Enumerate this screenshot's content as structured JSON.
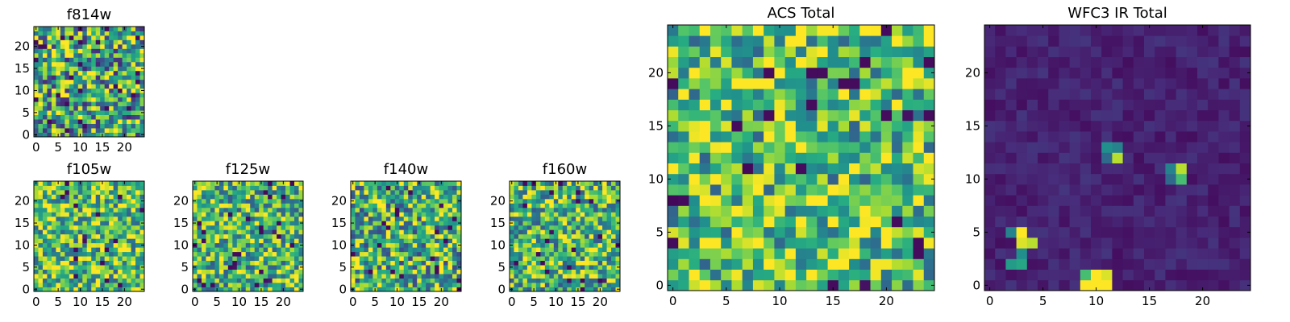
{
  "figure": {
    "description_free": true
  },
  "chart_data": [
    {
      "type": "heatmap",
      "title": "f814w",
      "grid": [
        25,
        25
      ],
      "xlim": [
        -0.5,
        24.5
      ],
      "ylim": [
        -0.5,
        24.5
      ],
      "xticks": [
        0,
        5,
        10,
        15,
        20
      ],
      "yticks": [
        0,
        5,
        10,
        15,
        20
      ],
      "colormap": "viridis",
      "pattern": "noise",
      "seed": 11,
      "base": 0.62,
      "spread": 0.5,
      "features": []
    },
    {
      "type": "heatmap",
      "title": "f105w",
      "grid": [
        25,
        25
      ],
      "xlim": [
        -0.5,
        24.5
      ],
      "ylim": [
        -0.5,
        24.5
      ],
      "xticks": [
        0,
        5,
        10,
        15,
        20
      ],
      "yticks": [
        0,
        5,
        10,
        15,
        20
      ],
      "colormap": "viridis",
      "pattern": "noise",
      "seed": 23,
      "base": 0.72,
      "spread": 0.4,
      "features": [
        {
          "x": 11,
          "y": 11,
          "v": 0.05
        },
        {
          "x": 11,
          "y": 12,
          "v": 0.1
        },
        {
          "x": 12,
          "y": 10,
          "v": 0.95
        },
        {
          "x": 13,
          "y": 10,
          "v": 0.97
        }
      ]
    },
    {
      "type": "heatmap",
      "title": "f125w",
      "grid": [
        25,
        25
      ],
      "xlim": [
        -0.5,
        24.5
      ],
      "ylim": [
        -0.5,
        24.5
      ],
      "xticks": [
        0,
        5,
        10,
        15,
        20
      ],
      "yticks": [
        0,
        5,
        10,
        15,
        20
      ],
      "colormap": "viridis",
      "pattern": "noise",
      "seed": 37,
      "base": 0.68,
      "spread": 0.4,
      "features": [
        {
          "x": 9,
          "y": 5,
          "v": 0.05
        },
        {
          "x": 16,
          "y": 2,
          "v": 0.05
        },
        {
          "x": 17,
          "y": 2,
          "v": 0.08
        },
        {
          "x": 18,
          "y": 13,
          "v": 0.1
        }
      ]
    },
    {
      "type": "heatmap",
      "title": "f140w",
      "grid": [
        25,
        25
      ],
      "xlim": [
        -0.5,
        24.5
      ],
      "ylim": [
        -0.5,
        24.5
      ],
      "xticks": [
        0,
        5,
        10,
        15,
        20
      ],
      "yticks": [
        0,
        5,
        10,
        15,
        20
      ],
      "colormap": "viridis",
      "pattern": "noise",
      "seed": 51,
      "base": 0.66,
      "spread": 0.45,
      "features": [
        {
          "x": 20,
          "y": 19,
          "v": 0.05
        },
        {
          "x": 2,
          "y": 8,
          "v": 0.95
        },
        {
          "x": 3,
          "y": 8,
          "v": 0.97
        }
      ]
    },
    {
      "type": "heatmap",
      "title": "f160w",
      "grid": [
        25,
        25
      ],
      "xlim": [
        -0.5,
        24.5
      ],
      "ylim": [
        -0.5,
        24.5
      ],
      "xticks": [
        0,
        5,
        10,
        15,
        20
      ],
      "yticks": [
        0,
        5,
        10,
        15,
        20
      ],
      "colormap": "viridis",
      "pattern": "noise",
      "seed": 67,
      "base": 0.68,
      "spread": 0.4,
      "features": [
        {
          "x": 9,
          "y": 13,
          "v": 0.05
        },
        {
          "x": 13,
          "y": 2,
          "v": 0.05
        },
        {
          "x": 4,
          "y": 21,
          "v": 0.95
        },
        {
          "x": 21,
          "y": 2,
          "v": 0.1
        }
      ]
    },
    {
      "type": "heatmap",
      "title": "ACS Total",
      "grid": [
        25,
        25
      ],
      "xlim": [
        -0.5,
        24.5
      ],
      "ylim": [
        -0.5,
        24.5
      ],
      "xticks": [
        0,
        5,
        10,
        15,
        20
      ],
      "yticks": [
        0,
        5,
        10,
        15,
        20
      ],
      "colormap": "viridis",
      "pattern": "noise",
      "seed": 89,
      "base": 0.72,
      "spread": 0.4,
      "features": [
        {
          "x": 7,
          "y": 11,
          "v": 0.02
        },
        {
          "x": 17,
          "y": 19,
          "v": 0.03
        },
        {
          "x": 22,
          "y": 16,
          "v": 0.05
        },
        {
          "x": 0,
          "y": 8,
          "v": 0.02
        },
        {
          "x": 18,
          "y": 0,
          "v": 0.05
        },
        {
          "x": 23,
          "y": 4,
          "v": 0.03
        },
        {
          "x": 9,
          "y": 11,
          "v": 0.98
        },
        {
          "x": 2,
          "y": 14,
          "v": 0.98
        }
      ]
    },
    {
      "type": "heatmap",
      "title": "WFC3 IR Total",
      "grid": [
        25,
        25
      ],
      "xlim": [
        -0.5,
        24.5
      ],
      "ylim": [
        -0.5,
        24.5
      ],
      "xticks": [
        0,
        5,
        10,
        15,
        20
      ],
      "yticks": [
        0,
        5,
        10,
        15,
        20
      ],
      "colormap": "viridis",
      "pattern": "background",
      "seed": 101,
      "base": 0.1,
      "spread": 0.12,
      "features": [
        {
          "x": 3,
          "y": 5,
          "v": 1.0
        },
        {
          "x": 3,
          "y": 4,
          "v": 0.95
        },
        {
          "x": 4,
          "y": 4,
          "v": 0.9
        },
        {
          "x": 2,
          "y": 5,
          "v": 0.45
        },
        {
          "x": 3,
          "y": 3,
          "v": 0.5
        },
        {
          "x": 3,
          "y": 2,
          "v": 0.6
        },
        {
          "x": 2,
          "y": 2,
          "v": 0.55
        },
        {
          "x": 9,
          "y": 0,
          "v": 1.0
        },
        {
          "x": 10,
          "y": 0,
          "v": 1.0
        },
        {
          "x": 11,
          "y": 0,
          "v": 1.0
        },
        {
          "x": 10,
          "y": 1,
          "v": 1.0
        },
        {
          "x": 11,
          "y": 1,
          "v": 0.95
        },
        {
          "x": 9,
          "y": 1,
          "v": 0.7
        },
        {
          "x": 11,
          "y": 13,
          "v": 0.5
        },
        {
          "x": 12,
          "y": 13,
          "v": 0.45
        },
        {
          "x": 12,
          "y": 12,
          "v": 0.9
        },
        {
          "x": 11,
          "y": 12,
          "v": 0.35
        },
        {
          "x": 18,
          "y": 11,
          "v": 0.9
        },
        {
          "x": 18,
          "y": 10,
          "v": 0.7
        },
        {
          "x": 17,
          "y": 11,
          "v": 0.45
        },
        {
          "x": 17,
          "y": 10,
          "v": 0.35
        }
      ]
    }
  ]
}
